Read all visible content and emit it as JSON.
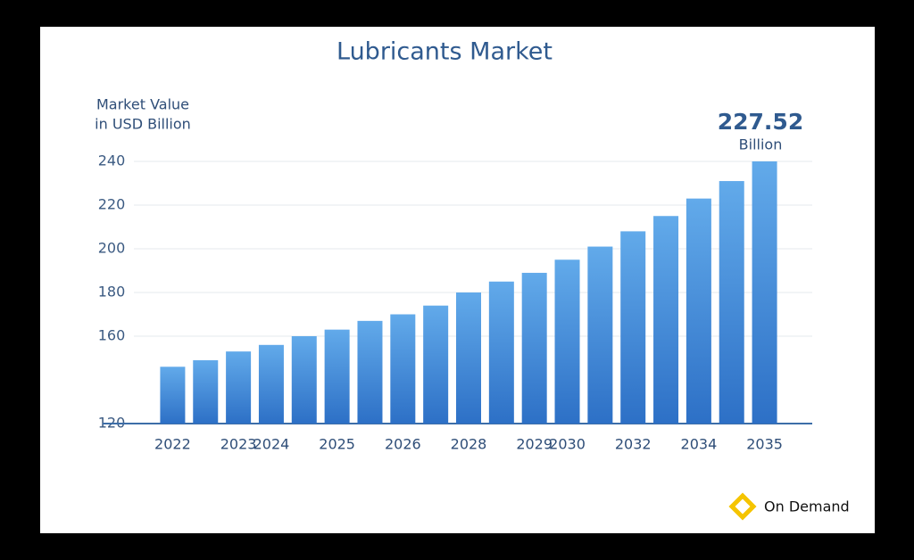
{
  "chart_data": {
    "type": "bar",
    "title": "Lubricants Market",
    "y_label": [
      "Market Value",
      "in USD Billion"
    ],
    "annotation": {
      "value": "227.52",
      "unit": "Billion"
    },
    "brand": "On Demand",
    "categories": [
      "2022",
      null,
      "2023",
      "2024",
      null,
      "2025",
      null,
      "2026",
      null,
      "2028",
      null,
      "2029",
      "2030",
      null,
      "2032",
      null,
      "2034",
      null,
      "2035"
    ],
    "values": [
      146,
      149,
      153,
      156,
      160,
      163,
      167,
      170,
      174,
      180,
      185,
      189,
      195,
      201,
      208,
      215,
      223,
      231,
      240
    ],
    "color": "#3f86d6",
    "ylim": [
      120,
      240
    ],
    "yticks": [
      120,
      160,
      180,
      200,
      220,
      240
    ],
    "grid": true
  }
}
